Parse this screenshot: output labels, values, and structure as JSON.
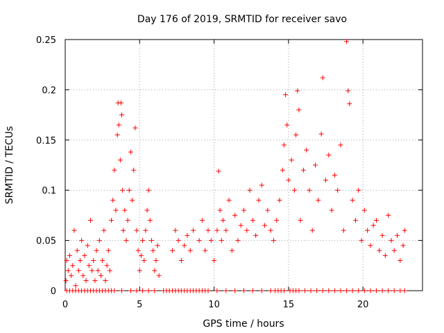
{
  "chart_data": {
    "type": "scatter",
    "title": "Day 176 of 2019, SRMTID for receiver savo",
    "xlabel": "GPS time / hours",
    "ylabel": "SRMTID / TECUs",
    "xlim": [
      0,
      24
    ],
    "ylim": [
      0,
      0.25
    ],
    "xticks": [
      0,
      5,
      10,
      15,
      20
    ],
    "yticks": [
      0,
      0.05,
      0.1,
      0.15,
      0.2,
      0.25
    ],
    "xtick_labels": [
      "0",
      "5",
      "10",
      "15",
      "20"
    ],
    "ytick_labels": [
      "0",
      "0.05",
      "0.1",
      "0.15",
      "0.2",
      "0.25"
    ],
    "grid": true,
    "marker": "+",
    "color": "#ff0000",
    "series": [
      {
        "name": "SRMTID",
        "x": [
          0.05,
          0.1,
          0.2,
          0.3,
          0.4,
          0.5,
          0.6,
          0.7,
          0.8,
          0.9,
          1.0,
          1.1,
          1.2,
          1.3,
          1.4,
          1.5,
          1.6,
          1.7,
          1.8,
          1.9,
          2.0,
          2.1,
          2.2,
          2.3,
          2.4,
          2.5,
          2.6,
          2.7,
          2.8,
          2.9,
          3.0,
          3.1,
          3.2,
          3.3,
          3.4,
          3.5,
          3.55,
          3.6,
          3.7,
          3.75,
          3.8,
          3.85,
          3.9,
          4.0,
          4.1,
          4.2,
          4.3,
          4.4,
          4.5,
          4.6,
          4.7,
          4.8,
          4.9,
          5.0,
          5.1,
          5.2,
          5.3,
          5.4,
          5.5,
          5.6,
          5.7,
          5.8,
          5.9,
          6.0,
          6.1,
          6.2,
          6.3,
          7.2,
          7.4,
          7.6,
          7.8,
          8.0,
          8.2,
          8.4,
          8.6,
          9.0,
          9.2,
          9.4,
          9.6,
          9.8,
          10.0,
          10.2,
          10.3,
          10.4,
          10.5,
          10.6,
          10.8,
          11.0,
          11.2,
          11.4,
          11.6,
          11.8,
          12.0,
          12.2,
          12.4,
          12.6,
          12.8,
          13.0,
          13.2,
          13.4,
          13.6,
          13.8,
          14.0,
          14.2,
          14.4,
          14.6,
          14.7,
          14.8,
          14.9,
          15.0,
          15.2,
          15.4,
          15.5,
          15.6,
          15.7,
          15.8,
          16.0,
          16.2,
          16.4,
          16.6,
          16.8,
          17.0,
          17.2,
          17.3,
          17.5,
          17.7,
          17.9,
          18.1,
          18.3,
          18.5,
          18.7,
          18.9,
          19.0,
          19.1,
          19.3,
          19.5,
          19.7,
          19.9,
          20.1,
          20.3,
          20.5,
          20.7,
          20.9,
          21.1,
          21.3,
          21.5,
          21.7,
          21.9,
          22.1,
          22.3,
          22.5,
          22.7,
          22.8
        ],
        "y": [
          0.01,
          0.03,
          0.02,
          0.035,
          0.015,
          0.025,
          0.06,
          0.005,
          0.04,
          0.02,
          0.03,
          0.05,
          0.015,
          0.035,
          0.01,
          0.045,
          0.025,
          0.07,
          0.02,
          0.03,
          0.01,
          0.04,
          0.02,
          0.05,
          0.015,
          0.03,
          0.06,
          0.01,
          0.025,
          0.04,
          0.02,
          0.07,
          0.09,
          0.12,
          0.08,
          0.155,
          0.187,
          0.165,
          0.13,
          0.187,
          0.175,
          0.1,
          0.06,
          0.08,
          0.05,
          0.07,
          0.1,
          0.138,
          0.09,
          0.12,
          0.162,
          0.06,
          0.04,
          0.02,
          0.035,
          0.05,
          0.03,
          0.06,
          0.08,
          0.1,
          0.07,
          0.05,
          0.04,
          0.02,
          0.03,
          0.045,
          0.015,
          0.04,
          0.06,
          0.05,
          0.03,
          0.045,
          0.055,
          0.04,
          0.06,
          0.05,
          0.07,
          0.04,
          0.06,
          0.05,
          0.03,
          0.06,
          0.119,
          0.08,
          0.05,
          0.07,
          0.06,
          0.09,
          0.04,
          0.075,
          0.05,
          0.065,
          0.08,
          0.06,
          0.1,
          0.07,
          0.055,
          0.09,
          0.105,
          0.065,
          0.08,
          0.06,
          0.05,
          0.07,
          0.09,
          0.12,
          0.145,
          0.195,
          0.165,
          0.11,
          0.13,
          0.1,
          0.155,
          0.199,
          0.18,
          0.07,
          0.12,
          0.14,
          0.1,
          0.06,
          0.125,
          0.09,
          0.156,
          0.212,
          0.11,
          0.135,
          0.08,
          0.115,
          0.1,
          0.145,
          0.06,
          0.248,
          0.199,
          0.186,
          0.09,
          0.07,
          0.1,
          0.05,
          0.08,
          0.06,
          0.045,
          0.065,
          0.07,
          0.04,
          0.055,
          0.035,
          0.075,
          0.05,
          0.04,
          0.055,
          0.03,
          0.045,
          0.06
        ]
      }
    ],
    "zero_markers_x": [
      0.1,
      0.3,
      0.5,
      0.7,
      0.9,
      1.1,
      1.3,
      1.5,
      1.7,
      1.9,
      2.1,
      2.3,
      2.5,
      2.7,
      2.9,
      3.1,
      3.3,
      3.8,
      4.4,
      4.8,
      5.2,
      5.6,
      6.0,
      6.6,
      6.8,
      7.0,
      7.2,
      7.4,
      7.6,
      7.8,
      8.0,
      8.2,
      8.4,
      8.6,
      8.8,
      9.0,
      9.2,
      9.4,
      9.6,
      10.2,
      10.8,
      11.4,
      12.0,
      12.6,
      13.2,
      13.8,
      14.1,
      14.3,
      14.5,
      14.7,
      15.1,
      15.3,
      15.5,
      15.7,
      16.1,
      16.5,
      16.9,
      17.3,
      17.7,
      18.1,
      18.5,
      18.9,
      19.3,
      19.7,
      20.1,
      20.5,
      20.9,
      21.3,
      21.7,
      22.1,
      22.5,
      22.8
    ]
  }
}
